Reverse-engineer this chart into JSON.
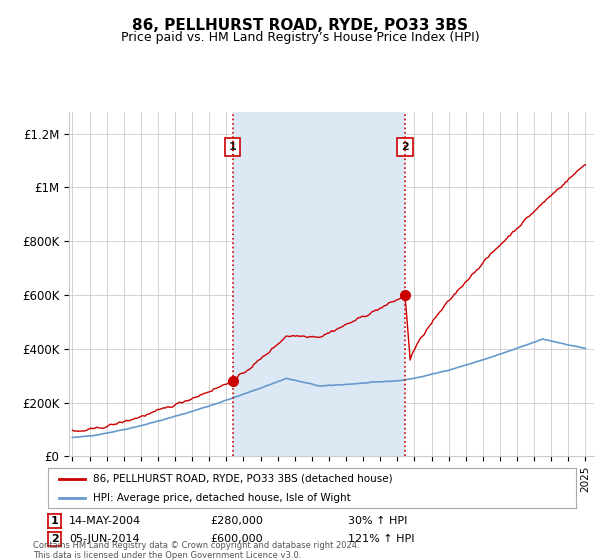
{
  "title": "86, PELLHURST ROAD, RYDE, PO33 3BS",
  "subtitle": "Price paid vs. HM Land Registry’s House Price Index (HPI)",
  "title_fontsize": 11,
  "subtitle_fontsize": 9,
  "background_color": "#ffffff",
  "plot_bg_color": "#ffffff",
  "shade_color": "#dce9f5",
  "grid_color": "#cccccc",
  "ylabel_ticks": [
    "£0",
    "£200K",
    "£400K",
    "£600K",
    "£800K",
    "£1M",
    "£1.2M"
  ],
  "ytick_values": [
    0,
    200000,
    400000,
    600000,
    800000,
    1000000,
    1200000
  ],
  "ylim": [
    0,
    1280000
  ],
  "xlim_start": 1994.8,
  "xlim_end": 2025.5,
  "sale1_x": 2004.37,
  "sale1_y": 280000,
  "sale2_x": 2014.45,
  "sale2_y": 600000,
  "sale1_label": "1",
  "sale2_label": "2",
  "vline_color": "#cc0000",
  "legend_label_red": "86, PELLHURST ROAD, RYDE, PO33 3BS (detached house)",
  "legend_label_blue": "HPI: Average price, detached house, Isle of Wight",
  "table_rows": [
    [
      "1",
      "14-MAY-2004",
      "£280,000",
      "30% ↑ HPI"
    ],
    [
      "2",
      "05-JUN-2014",
      "£600,000",
      "121% ↑ HPI"
    ]
  ],
  "footer": "Contains HM Land Registry data © Crown copyright and database right 2024.\nThis data is licensed under the Open Government Licence v3.0.",
  "red_line_color": "#cc0000",
  "blue_line_color": "#6699cc"
}
